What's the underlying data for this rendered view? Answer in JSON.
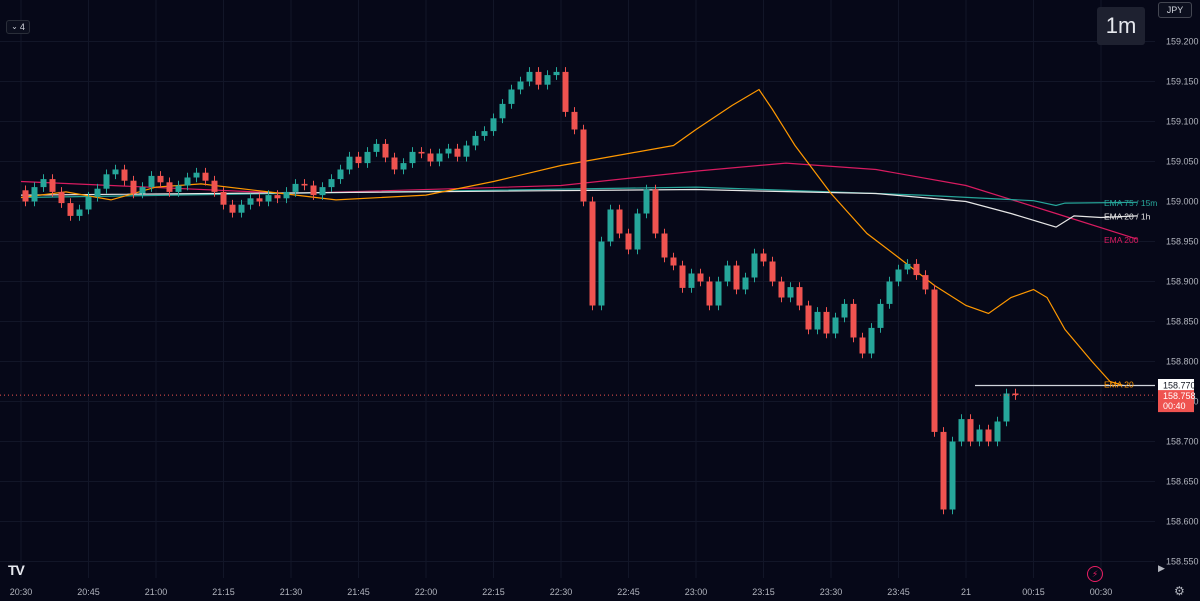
{
  "toolbar": {
    "collapse_count": "4",
    "interval": "1m",
    "currency": "JPY"
  },
  "icons": {
    "logo": "tradingview-logo",
    "bolt": "lightning-icon",
    "arrow": "chevron-right-icon",
    "gear": "gear-icon"
  },
  "logo_text": "TV",
  "colors": {
    "bg": "#060818",
    "up": "#26a69a",
    "down": "#ef5350",
    "grid": "#121628",
    "ema20": "#ff9800",
    "ema75_15m": "#26a69a",
    "ema20_1h": "#e6e6e6",
    "ema200": "#d81b60"
  },
  "chart_data": {
    "type": "candlestick",
    "ylim": [
      158.525,
      159.225
    ],
    "y_ticks": [
      "159.200",
      "159.150",
      "159.100",
      "159.050",
      "159.000",
      "158.950",
      "158.900",
      "158.850",
      "158.800",
      "158.750",
      "158.700",
      "158.650",
      "158.600",
      "158.550"
    ],
    "x_ticks": [
      "20:30",
      "20:45",
      "21:00",
      "21:15",
      "21:30",
      "21:45",
      "22:00",
      "22:15",
      "22:30",
      "22:45",
      "23:00",
      "23:15",
      "23:30",
      "23:45",
      "21",
      "00:15",
      "00:30"
    ],
    "x_tick_minutes": [
      0,
      15,
      30,
      45,
      60,
      75,
      90,
      105,
      120,
      135,
      150,
      165,
      180,
      195,
      210,
      225,
      240
    ],
    "last_price": "158.758",
    "countdown": "00:40",
    "horizontal_line": {
      "value": 158.77,
      "label": "158.770",
      "from_minute": 212
    },
    "indicator_labels": [
      {
        "name": "EMA 75 / 15m",
        "value": 158.998
      },
      {
        "name": "EMA 20 / 1h",
        "value": 158.981
      },
      {
        "name": "EMA 200",
        "value": 158.952
      },
      {
        "name": "EMA 20",
        "value": 158.771
      }
    ],
    "ema200": [
      [
        0,
        159.025
      ],
      [
        60,
        159.01
      ],
      [
        120,
        159.02
      ],
      [
        150,
        159.038
      ],
      [
        170,
        159.048
      ],
      [
        190,
        159.04
      ],
      [
        210,
        159.02
      ],
      [
        230,
        158.985
      ],
      [
        248,
        158.953
      ]
    ],
    "ema75_15m": [
      [
        0,
        159.005
      ],
      [
        150,
        159.018
      ],
      [
        165,
        159.015
      ],
      [
        200,
        159.008
      ],
      [
        225,
        159.001
      ],
      [
        230,
        158.995
      ],
      [
        232,
        158.998
      ],
      [
        248,
        158.999
      ]
    ],
    "ema20_1h": [
      [
        0,
        159.008
      ],
      [
        150,
        159.015
      ],
      [
        165,
        159.013
      ],
      [
        190,
        159.01
      ],
      [
        210,
        159.0
      ],
      [
        220,
        158.985
      ],
      [
        230,
        158.968
      ],
      [
        234,
        158.982
      ],
      [
        240,
        158.98
      ],
      [
        248,
        158.982
      ]
    ],
    "ema20": [
      [
        0,
        159.005
      ],
      [
        10,
        159.012
      ],
      [
        20,
        159.002
      ],
      [
        30,
        159.018
      ],
      [
        40,
        159.022
      ],
      [
        55,
        159.012
      ],
      [
        70,
        159.002
      ],
      [
        90,
        159.008
      ],
      [
        105,
        159.025
      ],
      [
        120,
        159.045
      ],
      [
        135,
        159.06
      ],
      [
        145,
        159.07
      ],
      [
        150,
        159.09
      ],
      [
        158,
        159.12
      ],
      [
        164,
        159.14
      ],
      [
        167,
        159.115
      ],
      [
        172,
        159.07
      ],
      [
        180,
        159.01
      ],
      [
        188,
        158.96
      ],
      [
        195,
        158.93
      ],
      [
        203,
        158.895
      ],
      [
        210,
        158.87
      ],
      [
        215,
        158.86
      ],
      [
        220,
        158.88
      ],
      [
        225,
        158.89
      ],
      [
        228,
        158.88
      ],
      [
        232,
        158.84
      ],
      [
        238,
        158.8
      ],
      [
        242,
        158.775
      ],
      [
        245,
        158.77
      ]
    ],
    "candles": [
      [
        159.014,
        159.0
      ],
      [
        159.0,
        159.018
      ],
      [
        159.018,
        159.028
      ],
      [
        159.028,
        159.012
      ],
      [
        159.012,
        158.998
      ],
      [
        158.998,
        158.982
      ],
      [
        158.982,
        158.99
      ],
      [
        158.99,
        159.006
      ],
      [
        159.006,
        159.016
      ],
      [
        159.016,
        159.034
      ],
      [
        159.034,
        159.04
      ],
      [
        159.04,
        159.026
      ],
      [
        159.026,
        159.01
      ],
      [
        159.01,
        159.018
      ],
      [
        159.018,
        159.032
      ],
      [
        159.032,
        159.024
      ],
      [
        159.024,
        159.012
      ],
      [
        159.012,
        159.02
      ],
      [
        159.02,
        159.03
      ],
      [
        159.03,
        159.036
      ],
      [
        159.036,
        159.026
      ],
      [
        159.026,
        159.012
      ],
      [
        159.012,
        158.996
      ],
      [
        158.996,
        158.986
      ],
      [
        158.986,
        158.996
      ],
      [
        158.996,
        159.004
      ],
      [
        159.004,
        159.0
      ],
      [
        159.0,
        159.008
      ],
      [
        159.008,
        159.004
      ],
      [
        159.004,
        159.012
      ],
      [
        159.012,
        159.022
      ],
      [
        159.022,
        159.02
      ],
      [
        159.02,
        159.008
      ],
      [
        159.008,
        159.018
      ],
      [
        159.018,
        159.028
      ],
      [
        159.028,
        159.04
      ],
      [
        159.04,
        159.056
      ],
      [
        159.056,
        159.048
      ],
      [
        159.048,
        159.062
      ],
      [
        159.062,
        159.072
      ],
      [
        159.072,
        159.055
      ],
      [
        159.055,
        159.04
      ],
      [
        159.04,
        159.048
      ],
      [
        159.048,
        159.062
      ],
      [
        159.062,
        159.06
      ],
      [
        159.06,
        159.05
      ],
      [
        159.05,
        159.06
      ],
      [
        159.06,
        159.066
      ],
      [
        159.066,
        159.056
      ],
      [
        159.056,
        159.07
      ],
      [
        159.07,
        159.082
      ],
      [
        159.082,
        159.088
      ],
      [
        159.088,
        159.104
      ],
      [
        159.104,
        159.122
      ],
      [
        159.122,
        159.14
      ],
      [
        159.14,
        159.15
      ],
      [
        159.15,
        159.162
      ],
      [
        159.162,
        159.146
      ],
      [
        159.146,
        159.158
      ],
      [
        159.158,
        159.162
      ],
      [
        159.162,
        159.112
      ],
      [
        159.112,
        159.09
      ],
      [
        159.09,
        159.0
      ],
      [
        159.0,
        158.87
      ],
      [
        158.87,
        158.95
      ],
      [
        158.95,
        158.99
      ],
      [
        158.99,
        158.96
      ],
      [
        158.96,
        158.94
      ],
      [
        158.94,
        158.985
      ],
      [
        158.985,
        159.015
      ],
      [
        159.015,
        158.96
      ],
      [
        158.96,
        158.93
      ],
      [
        158.93,
        158.92
      ],
      [
        158.92,
        158.892
      ],
      [
        158.892,
        158.91
      ],
      [
        158.91,
        158.9
      ],
      [
        158.9,
        158.87
      ],
      [
        158.87,
        158.9
      ],
      [
        158.9,
        158.92
      ],
      [
        158.92,
        158.89
      ],
      [
        158.89,
        158.905
      ],
      [
        158.905,
        158.935
      ],
      [
        158.935,
        158.925
      ],
      [
        158.925,
        158.9
      ],
      [
        158.9,
        158.88
      ],
      [
        158.88,
        158.893
      ],
      [
        158.893,
        158.87
      ],
      [
        158.87,
        158.84
      ],
      [
        158.84,
        158.862
      ],
      [
        158.862,
        158.835
      ],
      [
        158.835,
        158.855
      ],
      [
        158.855,
        158.872
      ],
      [
        158.872,
        158.83
      ],
      [
        158.83,
        158.81
      ],
      [
        158.81,
        158.842
      ],
      [
        158.842,
        158.872
      ],
      [
        158.872,
        158.9
      ],
      [
        158.9,
        158.915
      ],
      [
        158.915,
        158.922
      ],
      [
        158.922,
        158.908
      ],
      [
        158.908,
        158.89
      ],
      [
        158.89,
        158.712
      ],
      [
        158.712,
        158.615
      ],
      [
        158.615,
        158.7
      ],
      [
        158.7,
        158.728
      ],
      [
        158.728,
        158.7
      ],
      [
        158.7,
        158.715
      ],
      [
        158.715,
        158.7
      ],
      [
        158.7,
        158.725
      ],
      [
        158.725,
        158.76
      ],
      [
        158.76,
        158.758
      ]
    ]
  }
}
